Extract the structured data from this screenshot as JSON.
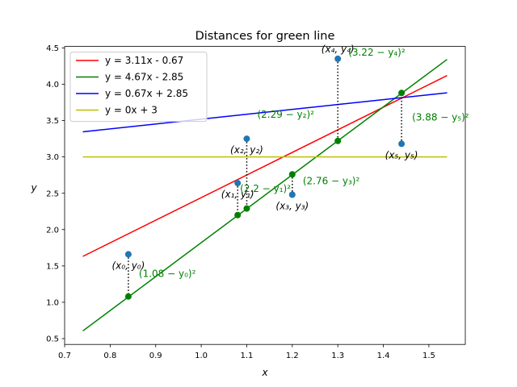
{
  "chart_data": {
    "type": "line",
    "title": "Distances for green line",
    "xlabel": "x",
    "ylabel": "y",
    "xlim": [
      0.7,
      1.58
    ],
    "ylim": [
      0.42,
      4.52
    ],
    "xticks": [
      0.7,
      0.8,
      0.9,
      1.0,
      1.1,
      1.2,
      1.3,
      1.4,
      1.5
    ],
    "xtick_labels": [
      "0.7",
      "0.8",
      "0.9",
      "1.0",
      "1.1",
      "1.2",
      "1.3",
      "1.4",
      "1.5"
    ],
    "yticks": [
      0.5,
      1.0,
      1.5,
      2.0,
      2.5,
      3.0,
      3.5,
      4.0,
      4.5
    ],
    "ytick_labels": [
      "0.5",
      "1.0",
      "1.5",
      "2.0",
      "2.5",
      "3.0",
      "3.5",
      "4.0",
      "4.5"
    ],
    "grid": false,
    "legend_position": "top-left",
    "line_x_range": [
      0.74,
      1.54
    ],
    "series": [
      {
        "name": "y = 3.11x - 0.67",
        "slope": 3.11,
        "intercept": -0.67,
        "color": "#ff0000"
      },
      {
        "name": "y = 4.67x - 2.85",
        "slope": 4.67,
        "intercept": -2.85,
        "color": "#008000"
      },
      {
        "name": "y = 0.67x + 2.85",
        "slope": 0.67,
        "intercept": 2.85,
        "color": "#0000ff"
      },
      {
        "name": "y = 0x + 3",
        "slope": 0,
        "intercept": 3,
        "color": "#bfbf00"
      }
    ],
    "points": [
      {
        "x": 0.84,
        "y": 1.66,
        "label": "(x₀, y₀)",
        "fit": 1.08,
        "dist_label": "(1.08 − y₀)²"
      },
      {
        "x": 1.08,
        "y": 2.64,
        "label": "(x₁, y₁)",
        "fit": 2.2,
        "dist_label": "(2.2 − y₁)²"
      },
      {
        "x": 1.1,
        "y": 3.25,
        "label": "(x₂, y₂)",
        "fit": 2.29,
        "dist_label": "(2.29 − y₂)²"
      },
      {
        "x": 1.2,
        "y": 2.48,
        "label": "(x₃, y₃)",
        "fit": 2.76,
        "dist_label": "(2.76 − y₃)²"
      },
      {
        "x": 1.3,
        "y": 4.35,
        "label": "(x₄, y₄)",
        "fit": 3.22,
        "dist_label": "(3.22 − y₄)²"
      },
      {
        "x": 1.44,
        "y": 3.18,
        "label": "(x₅, y₅)",
        "fit": 3.88,
        "dist_label": "(3.88 − y₅)²"
      }
    ],
    "point_color": "#1f77b4",
    "fit_color": "#008000"
  }
}
